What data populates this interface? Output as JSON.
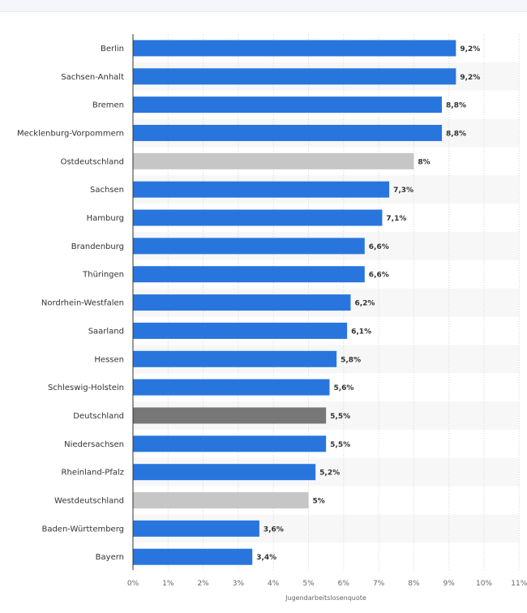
{
  "chart_data": {
    "type": "bar",
    "orientation": "horizontal",
    "title": "",
    "xlabel": "Jugendarbeitslosenquote",
    "ylabel": "",
    "xlim": [
      0,
      11
    ],
    "grid": true,
    "categories": [
      "Berlin",
      "Sachsen-Anhalt",
      "Bremen",
      "Mecklenburg-Vorpommern",
      "Ostdeutschland",
      "Sachsen",
      "Hamburg",
      "Brandenburg",
      "Thüringen",
      "Nordrhein-Westfalen",
      "Saarland",
      "Hessen",
      "Schleswig-Holstein",
      "Deutschland",
      "Niedersachsen",
      "Rheinland-Pfalz",
      "Westdeutschland",
      "Baden-Württemberg",
      "Bayern"
    ],
    "values": [
      9.2,
      9.2,
      8.8,
      8.8,
      8.0,
      7.3,
      7.1,
      6.6,
      6.6,
      6.2,
      6.1,
      5.8,
      5.6,
      5.5,
      5.5,
      5.2,
      5.0,
      3.6,
      3.4
    ],
    "value_labels": [
      "9,2%",
      "9,2%",
      "8,8%",
      "8,8%",
      "8%",
      "7,3%",
      "7,1%",
      "6,6%",
      "6,6%",
      "6,2%",
      "6,1%",
      "5,8%",
      "5,6%",
      "5,5%",
      "5,5%",
      "5,2%",
      "5%",
      "3,6%",
      "3,4%"
    ],
    "bar_kinds": [
      "state",
      "state",
      "state",
      "state",
      "region",
      "state",
      "state",
      "state",
      "state",
      "state",
      "state",
      "state",
      "state",
      "national",
      "state",
      "state",
      "region",
      "state",
      "state"
    ],
    "ticks": [
      "0%",
      "1%",
      "2%",
      "3%",
      "4%",
      "5%",
      "6%",
      "7%",
      "8%",
      "9%",
      "10%",
      "11%"
    ],
    "colors": {
      "state": "#2876dd",
      "region": "#c6c6c6",
      "national": "#777777",
      "stripe": "#f7f7f7",
      "grid": "#d5d5d5"
    }
  }
}
